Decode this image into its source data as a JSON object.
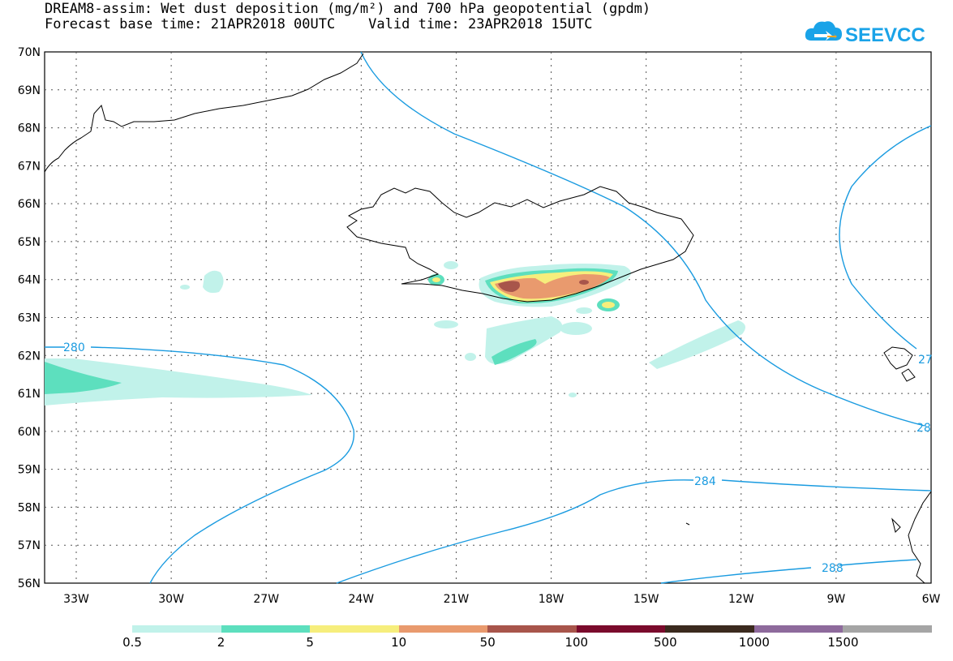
{
  "header": {
    "title_line1": "DREAM8-assim: Wet dust deposition (mg/m²) and 700 hPa geopotential (gpdm)",
    "title_line2": "Forecast base time: 21APR2018 00UTC    Valid time: 23APR2018 15UTC"
  },
  "logo": {
    "text": "SEEVCCC",
    "icon": "cloud-arrow-icon",
    "color": "#1aa3e8"
  },
  "map": {
    "region": "North Atlantic / Iceland",
    "lon_range": [
      "34.2W",
      "6W"
    ],
    "lat_range": [
      "56N",
      "70N"
    ],
    "grid": true,
    "lat_labels": [
      "70N",
      "69N",
      "68N",
      "67N",
      "66N",
      "65N",
      "64N",
      "63N",
      "62N",
      "61N",
      "60N",
      "59N",
      "58N",
      "57N",
      "56N"
    ],
    "lon_labels": [
      "33W",
      "30W",
      "27W",
      "24W",
      "21W",
      "18W",
      "15W",
      "12W",
      "9W",
      "6W"
    ],
    "contours": [
      {
        "level": "280",
        "color": "#1a9be0"
      },
      {
        "level": "284",
        "color": "#1a9be0"
      },
      {
        "level": "288",
        "color": "#1a9be0"
      },
      {
        "level": "28",
        "color": "#1a9be0"
      },
      {
        "level": "27",
        "color": "#1a9be0"
      }
    ]
  },
  "legend": {
    "labels": [
      "0.5",
      "2",
      "5",
      "10",
      "50",
      "100",
      "500",
      "1000",
      "1500"
    ],
    "colors": [
      "#c1f2ea",
      "#5ddfbe",
      "#f6ee7c",
      "#e99a6e",
      "#a8554b",
      "#7a0a2c",
      "#3b2a1e",
      "#8e6a9c",
      "#a5a5a5"
    ]
  }
}
